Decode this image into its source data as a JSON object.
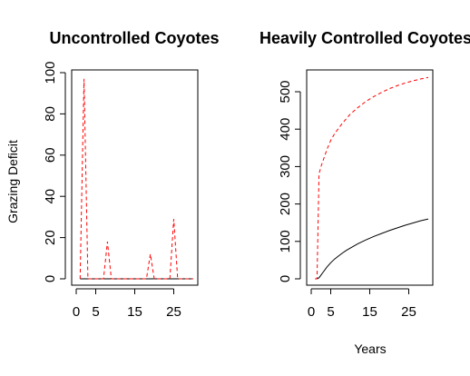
{
  "chart_data": [
    {
      "type": "line",
      "title": "Uncontrolled Coyotes",
      "xlabel": "",
      "ylabel": "Grazing Deficit",
      "xlim": [
        0,
        30
      ],
      "ylim": [
        0,
        100
      ],
      "xticks": [
        0,
        5,
        15,
        25
      ],
      "yticks": [
        0,
        20,
        40,
        60,
        80,
        100
      ],
      "grid": false,
      "series": [
        {
          "style": "solid",
          "color": "#000000",
          "x": [
            1,
            30
          ],
          "y": [
            0,
            0
          ]
        },
        {
          "style": "dashed",
          "color": "#ff0000",
          "x": [
            1,
            2,
            3,
            7,
            8,
            9,
            18,
            19,
            20,
            24,
            25,
            26,
            30
          ],
          "y": [
            0,
            97,
            0,
            0,
            18,
            0,
            0,
            12,
            0,
            0,
            29,
            0,
            0
          ]
        }
      ]
    },
    {
      "type": "line",
      "title": "Heavily Controlled Coyotes",
      "xlabel": "Years",
      "ylabel": "",
      "xlim": [
        0,
        30
      ],
      "ylim": [
        0,
        550
      ],
      "xticks": [
        0,
        5,
        15,
        25
      ],
      "yticks": [
        0,
        100,
        200,
        300,
        400,
        500
      ],
      "grid": false,
      "series": [
        {
          "style": "solid",
          "color": "#000000",
          "x": [
            1,
            1.5,
            2,
            2.5,
            3,
            4,
            5,
            6,
            7,
            8,
            9,
            10,
            12,
            14,
            16,
            18,
            20,
            22,
            24,
            26,
            28,
            30
          ],
          "y": [
            0,
            0,
            3,
            10,
            17,
            31,
            43,
            53,
            61,
            69,
            76,
            82,
            94,
            104,
            113,
            121,
            129,
            136,
            143,
            149,
            155,
            160
          ]
        },
        {
          "style": "dashed",
          "color": "#ff0000",
          "x": [
            1,
            1.5,
            2,
            2.5,
            3,
            4,
            5,
            6,
            7,
            8,
            9,
            10,
            12,
            14,
            16,
            18,
            20,
            22,
            24,
            26,
            28,
            30
          ],
          "y": [
            0,
            0,
            280,
            300,
            315,
            345,
            370,
            388,
            402,
            416,
            428,
            440,
            458,
            474,
            487,
            498,
            508,
            516,
            523,
            529,
            534,
            538
          ]
        }
      ]
    }
  ]
}
